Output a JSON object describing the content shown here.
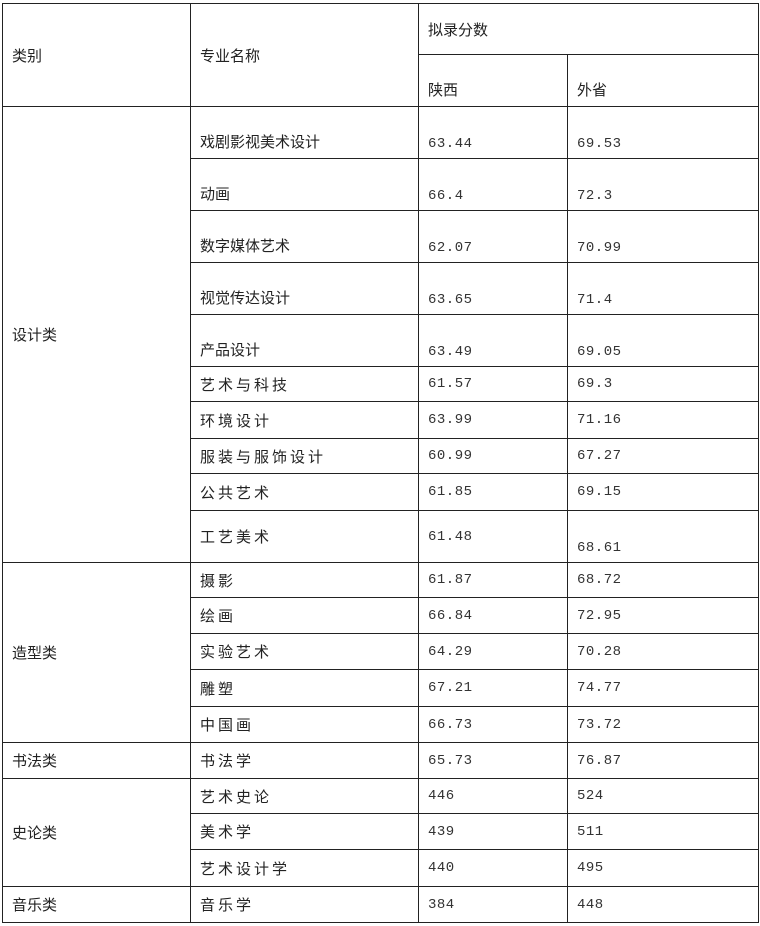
{
  "header": {
    "category": "类别",
    "major": "专业名称",
    "score_group": "拟录分数",
    "shaanxi": "陕西",
    "other": "外省"
  },
  "groups": [
    {
      "category": "设计类",
      "rows": [
        {
          "major": "戏剧影视美术设计",
          "shaanxi": "63.44",
          "other": "69.53"
        },
        {
          "major": "动画",
          "shaanxi": "66.4",
          "other": "72.3"
        },
        {
          "major": "数字媒体艺术",
          "shaanxi": "62.07",
          "other": "70.99"
        },
        {
          "major": "视觉传达设计",
          "shaanxi": "63.65",
          "other": "71.4"
        },
        {
          "major": "产品设计",
          "shaanxi": "63.49",
          "other": "69.05"
        },
        {
          "major": "艺术与科技",
          "shaanxi": "61.57",
          "other": "69.3"
        },
        {
          "major": "环境设计",
          "shaanxi": "63.99",
          "other": "71.16"
        },
        {
          "major": "服装与服饰设计",
          "shaanxi": "60.99",
          "other": "67.27"
        },
        {
          "major": "公共艺术",
          "shaanxi": "61.85",
          "other": "69.15"
        },
        {
          "major": "工艺美术",
          "shaanxi": "61.48",
          "other": "68.61"
        }
      ]
    },
    {
      "category": "造型类",
      "rows": [
        {
          "major": "摄影",
          "shaanxi": "61.87",
          "other": "68.72"
        },
        {
          "major": "绘画",
          "shaanxi": "66.84",
          "other": "72.95"
        },
        {
          "major": "实验艺术",
          "shaanxi": "64.29",
          "other": "70.28"
        },
        {
          "major": "雕塑",
          "shaanxi": "67.21",
          "other": "74.77"
        },
        {
          "major": "中国画",
          "shaanxi": "66.73",
          "other": "73.72"
        }
      ]
    },
    {
      "category": "书法类",
      "rows": [
        {
          "major": "书法学",
          "shaanxi": "65.73",
          "other": "76.87"
        }
      ]
    },
    {
      "category": "史论类",
      "rows": [
        {
          "major": "艺术史论",
          "shaanxi": "446",
          "other": "524"
        },
        {
          "major": "美术学",
          "shaanxi": "439",
          "other": "511"
        },
        {
          "major": "艺术设计学",
          "shaanxi": "440",
          "other": "495"
        }
      ]
    },
    {
      "category": "音乐类",
      "rows": [
        {
          "major": "音乐学",
          "shaanxi": "384",
          "other": "448"
        }
      ]
    }
  ]
}
